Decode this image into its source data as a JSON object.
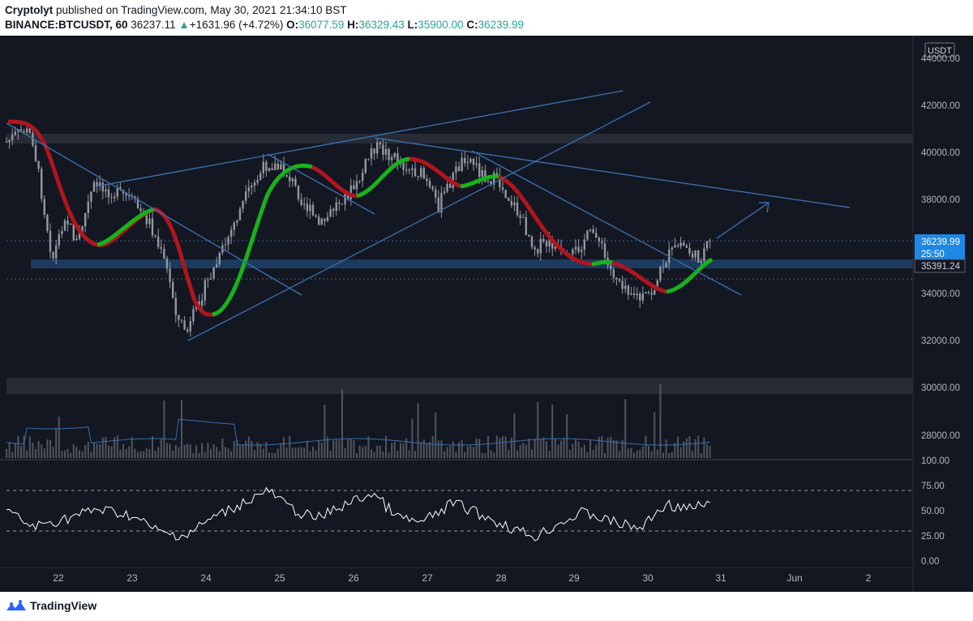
{
  "header": {
    "author": "Cryptolyt",
    "published_text": "published on TradingView.com, May 30, 2021 21:34:10 BST",
    "symbol": "BINANCE:BTCUSDT, 60",
    "last": "36237.11",
    "change_arrow": "▲",
    "change": "+1631.96 (+4.72%)",
    "o_label": "O:",
    "o_val": "36077.59",
    "h_label": "H:",
    "h_val": "36329.43",
    "l_label": "L:",
    "l_val": "35900.00",
    "c_label": "C:",
    "c_val": "36239.99"
  },
  "price_axis": {
    "currency": "USDT",
    "ticks": [
      "44000.00",
      "42000.00",
      "40000.00",
      "38000.00",
      "34000.00",
      "32000.00",
      "30000.00",
      "28000.00"
    ],
    "current_price": "36239.99",
    "countdown": "25:50",
    "level_price": "35391.24"
  },
  "rsi_axis": {
    "ticks": [
      "100.00",
      "75.00",
      "50.00",
      "25.00",
      "0.00"
    ]
  },
  "time_axis": {
    "labels": [
      "22",
      "23",
      "24",
      "25",
      "26",
      "27",
      "28",
      "29",
      "30",
      "31",
      "Jun",
      "2"
    ]
  },
  "footer": {
    "brand": "TradingView"
  },
  "colors": {
    "background": "#131722",
    "candle": "#9598a1",
    "line": "#2962ff",
    "up": "#26a69a",
    "ribbon_up": "#17b31a",
    "ribbon_down": "#b2141d",
    "price_label_bg": "#1e88e5"
  }
}
